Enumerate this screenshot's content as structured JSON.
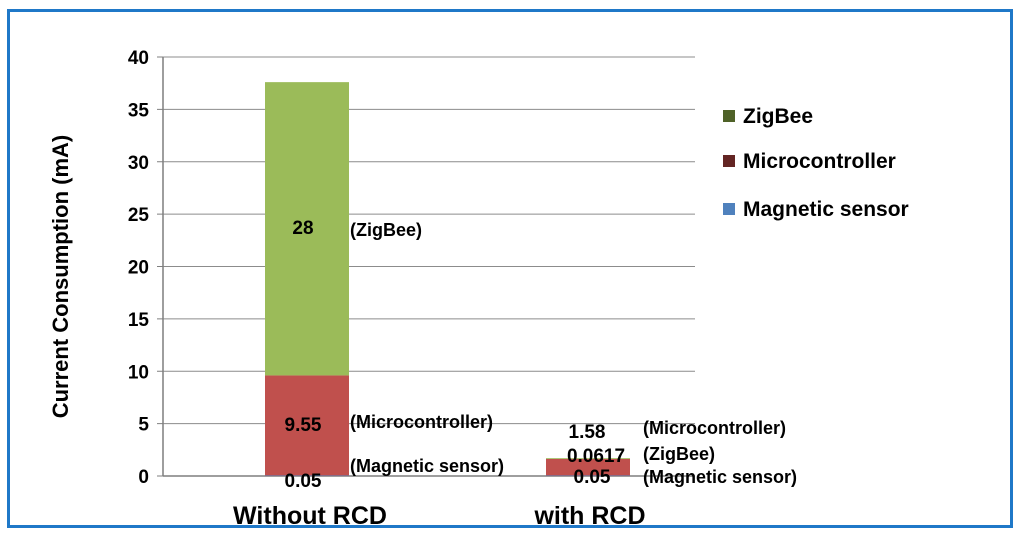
{
  "chart_data": {
    "type": "bar",
    "stacked": true,
    "categories": [
      "Without RCD",
      "with RCD"
    ],
    "series": [
      {
        "name": "Magnetic sensor",
        "values": [
          0.05,
          0.05
        ],
        "color": "#4f81bd",
        "labels": [
          "0.05",
          "0.05"
        ],
        "notes": [
          "(Magnetic sensor)",
          "(Magnetic sensor)"
        ]
      },
      {
        "name": "Microcontroller",
        "values": [
          9.55,
          1.58
        ],
        "color": "#c0504d",
        "labels": [
          "9.55",
          "1.58"
        ],
        "notes": [
          "(Microcontroller)",
          "(Microcontroller)"
        ]
      },
      {
        "name": "ZigBee",
        "values": [
          28,
          0.0617
        ],
        "color": "#9bbb59",
        "labels": [
          "28",
          "0.0617"
        ],
        "notes": [
          "(ZigBee)",
          "(ZigBee)"
        ]
      }
    ],
    "legend_order": [
      "ZigBee",
      "Microcontroller",
      "Magnetic sensor"
    ],
    "legend_swatch_colors": [
      "#4f6228",
      "#632523",
      "#4f81bd"
    ],
    "legend_position": "right",
    "ylabel": "Current Consumption (mA)",
    "xlabel": "",
    "ylim": [
      0,
      40
    ],
    "yticks": [
      "0",
      "5",
      "10",
      "15",
      "20",
      "25",
      "30",
      "35",
      "40"
    ],
    "grid": true
  }
}
